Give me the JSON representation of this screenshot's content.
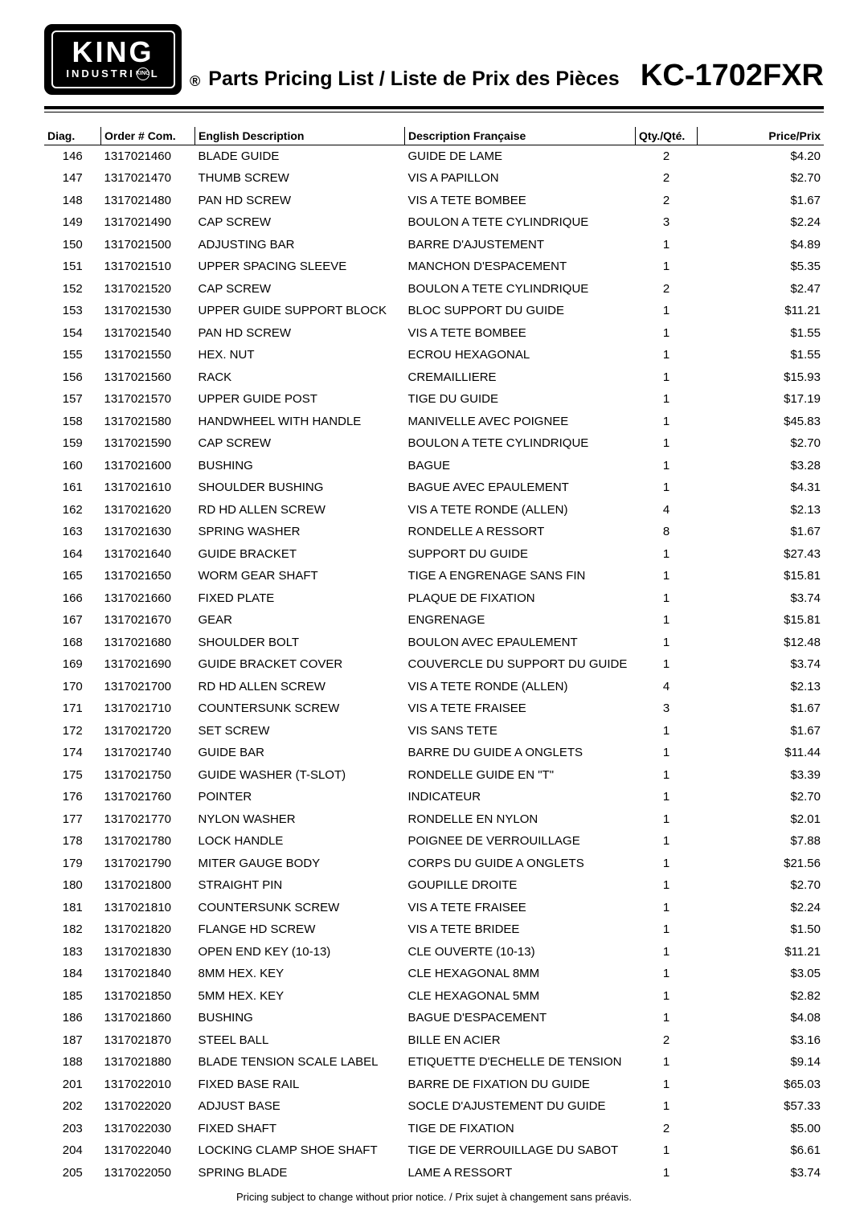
{
  "logo": {
    "line1": "KING",
    "line2_a": "INDUSTRI",
    "line2_b": "L",
    "circle": "KING"
  },
  "registered": "®",
  "title": "Parts Pricing List / Liste de Prix des Pièces",
  "model": "KC-1702FXR",
  "columns": {
    "diag": "Diag.",
    "order": "Order # Com.",
    "eng": "English Description",
    "fr": "Description Française",
    "qty": "Qty./Qté.",
    "price": "Price/Prix"
  },
  "footer": "Pricing subject to change without prior notice. / Prix sujet à changement sans préavis.",
  "rows": [
    {
      "diag": "146",
      "order": "1317021460",
      "eng": "BLADE GUIDE",
      "fr": "GUIDE DE LAME",
      "qty": "2",
      "price": "$4.20"
    },
    {
      "diag": "147",
      "order": "1317021470",
      "eng": "THUMB SCREW",
      "fr": "VIS A PAPILLON",
      "qty": "2",
      "price": "$2.70"
    },
    {
      "diag": "148",
      "order": "1317021480",
      "eng": "PAN HD SCREW",
      "fr": "VIS A TETE BOMBEE",
      "qty": "2",
      "price": "$1.67"
    },
    {
      "diag": "149",
      "order": "1317021490",
      "eng": "CAP SCREW",
      "fr": "BOULON A TETE CYLINDRIQUE",
      "qty": "3",
      "price": "$2.24"
    },
    {
      "diag": "150",
      "order": "1317021500",
      "eng": "ADJUSTING BAR",
      "fr": "BARRE D'AJUSTEMENT",
      "qty": "1",
      "price": "$4.89"
    },
    {
      "diag": "151",
      "order": "1317021510",
      "eng": "UPPER SPACING SLEEVE",
      "fr": "MANCHON D'ESPACEMENT",
      "qty": "1",
      "price": "$5.35"
    },
    {
      "diag": "152",
      "order": "1317021520",
      "eng": "CAP SCREW",
      "fr": "BOULON A TETE CYLINDRIQUE",
      "qty": "2",
      "price": "$2.47"
    },
    {
      "diag": "153",
      "order": "1317021530",
      "eng": "UPPER GUIDE SUPPORT BLOCK",
      "fr": "BLOC SUPPORT DU GUIDE",
      "qty": "1",
      "price": "$11.21"
    },
    {
      "diag": "154",
      "order": "1317021540",
      "eng": "PAN HD SCREW",
      "fr": "VIS A TETE BOMBEE",
      "qty": "1",
      "price": "$1.55"
    },
    {
      "diag": "155",
      "order": "1317021550",
      "eng": "HEX. NUT",
      "fr": "ECROU HEXAGONAL",
      "qty": "1",
      "price": "$1.55"
    },
    {
      "diag": "156",
      "order": "1317021560",
      "eng": "RACK",
      "fr": "CREMAILLIERE",
      "qty": "1",
      "price": "$15.93"
    },
    {
      "diag": "157",
      "order": "1317021570",
      "eng": "UPPER GUIDE POST",
      "fr": "TIGE DU GUIDE",
      "qty": "1",
      "price": "$17.19"
    },
    {
      "diag": "158",
      "order": "1317021580",
      "eng": "HANDWHEEL WITH HANDLE",
      "fr": "MANIVELLE AVEC POIGNEE",
      "qty": "1",
      "price": "$45.83"
    },
    {
      "diag": "159",
      "order": "1317021590",
      "eng": "CAP SCREW",
      "fr": "BOULON A TETE CYLINDRIQUE",
      "qty": "1",
      "price": "$2.70"
    },
    {
      "diag": "160",
      "order": "1317021600",
      "eng": "BUSHING",
      "fr": "BAGUE",
      "qty": "1",
      "price": "$3.28"
    },
    {
      "diag": "161",
      "order": "1317021610",
      "eng": "SHOULDER BUSHING",
      "fr": "BAGUE AVEC EPAULEMENT",
      "qty": "1",
      "price": "$4.31"
    },
    {
      "diag": "162",
      "order": "1317021620",
      "eng": "RD HD ALLEN SCREW",
      "fr": "VIS A TETE RONDE (ALLEN)",
      "qty": "4",
      "price": "$2.13"
    },
    {
      "diag": "163",
      "order": "1317021630",
      "eng": "SPRING WASHER",
      "fr": "RONDELLE A RESSORT",
      "qty": "8",
      "price": "$1.67"
    },
    {
      "diag": "164",
      "order": "1317021640",
      "eng": "GUIDE BRACKET",
      "fr": "SUPPORT DU GUIDE",
      "qty": "1",
      "price": "$27.43"
    },
    {
      "diag": "165",
      "order": "1317021650",
      "eng": "WORM GEAR SHAFT",
      "fr": "TIGE A ENGRENAGE SANS FIN",
      "qty": "1",
      "price": "$15.81"
    },
    {
      "diag": "166",
      "order": "1317021660",
      "eng": "FIXED PLATE",
      "fr": "PLAQUE DE FIXATION",
      "qty": "1",
      "price": "$3.74"
    },
    {
      "diag": "167",
      "order": "1317021670",
      "eng": "GEAR",
      "fr": "ENGRENAGE",
      "qty": "1",
      "price": "$15.81"
    },
    {
      "diag": "168",
      "order": "1317021680",
      "eng": "SHOULDER BOLT",
      "fr": "BOULON AVEC EPAULEMENT",
      "qty": "1",
      "price": "$12.48"
    },
    {
      "diag": "169",
      "order": "1317021690",
      "eng": "GUIDE BRACKET COVER",
      "fr": "COUVERCLE DU SUPPORT DU GUIDE",
      "qty": "1",
      "price": "$3.74"
    },
    {
      "diag": "170",
      "order": "1317021700",
      "eng": "RD HD ALLEN SCREW",
      "fr": "VIS A TETE RONDE (ALLEN)",
      "qty": "4",
      "price": "$2.13"
    },
    {
      "diag": "171",
      "order": "1317021710",
      "eng": "COUNTERSUNK SCREW",
      "fr": "VIS A TETE FRAISEE",
      "qty": "3",
      "price": "$1.67"
    },
    {
      "diag": "172",
      "order": "1317021720",
      "eng": "SET SCREW",
      "fr": "VIS SANS TETE",
      "qty": "1",
      "price": "$1.67"
    },
    {
      "diag": "174",
      "order": "1317021740",
      "eng": "GUIDE BAR",
      "fr": "BARRE DU GUIDE A ONGLETS",
      "qty": "1",
      "price": "$11.44"
    },
    {
      "diag": "175",
      "order": "1317021750",
      "eng": "GUIDE WASHER (T-SLOT)",
      "fr": "RONDELLE GUIDE EN \"T\"",
      "qty": "1",
      "price": "$3.39"
    },
    {
      "diag": "176",
      "order": "1317021760",
      "eng": "POINTER",
      "fr": "INDICATEUR",
      "qty": "1",
      "price": "$2.70"
    },
    {
      "diag": "177",
      "order": "1317021770",
      "eng": "NYLON WASHER",
      "fr": "RONDELLE EN NYLON",
      "qty": "1",
      "price": "$2.01"
    },
    {
      "diag": "178",
      "order": "1317021780",
      "eng": "LOCK HANDLE",
      "fr": "POIGNEE DE VERROUILLAGE",
      "qty": "1",
      "price": "$7.88"
    },
    {
      "diag": "179",
      "order": "1317021790",
      "eng": "MITER GAUGE BODY",
      "fr": "CORPS DU GUIDE A ONGLETS",
      "qty": "1",
      "price": "$21.56"
    },
    {
      "diag": "180",
      "order": "1317021800",
      "eng": "STRAIGHT PIN",
      "fr": "GOUPILLE DROITE",
      "qty": "1",
      "price": "$2.70"
    },
    {
      "diag": "181",
      "order": "1317021810",
      "eng": "COUNTERSUNK SCREW",
      "fr": "VIS A TETE FRAISEE",
      "qty": "1",
      "price": "$2.24"
    },
    {
      "diag": "182",
      "order": "1317021820",
      "eng": "FLANGE HD SCREW",
      "fr": "VIS A TETE BRIDEE",
      "qty": "1",
      "price": "$1.50"
    },
    {
      "diag": "183",
      "order": "1317021830",
      "eng": "OPEN END KEY (10-13)",
      "fr": "CLE OUVERTE (10-13)",
      "qty": "1",
      "price": "$11.21"
    },
    {
      "diag": "184",
      "order": "1317021840",
      "eng": "8MM HEX. KEY",
      "fr": "CLE HEXAGONAL 8MM",
      "qty": "1",
      "price": "$3.05"
    },
    {
      "diag": "185",
      "order": "1317021850",
      "eng": "5MM HEX. KEY",
      "fr": "CLE HEXAGONAL 5MM",
      "qty": "1",
      "price": "$2.82"
    },
    {
      "diag": "186",
      "order": "1317021860",
      "eng": "BUSHING",
      "fr": "BAGUE D'ESPACEMENT",
      "qty": "1",
      "price": "$4.08"
    },
    {
      "diag": "187",
      "order": "1317021870",
      "eng": "STEEL BALL",
      "fr": "BILLE EN ACIER",
      "qty": "2",
      "price": "$3.16"
    },
    {
      "diag": "188",
      "order": "1317021880",
      "eng": "BLADE TENSION SCALE LABEL",
      "fr": "ETIQUETTE D'ECHELLE DE TENSION",
      "qty": "1",
      "price": "$9.14"
    },
    {
      "diag": "201",
      "order": "1317022010",
      "eng": "FIXED BASE RAIL",
      "fr": "BARRE DE FIXATION DU GUIDE",
      "qty": "1",
      "price": "$65.03"
    },
    {
      "diag": "202",
      "order": "1317022020",
      "eng": "ADJUST BASE",
      "fr": "SOCLE D'AJUSTEMENT DU GUIDE",
      "qty": "1",
      "price": "$57.33"
    },
    {
      "diag": "203",
      "order": "1317022030",
      "eng": "FIXED SHAFT",
      "fr": "TIGE DE FIXATION",
      "qty": "2",
      "price": "$5.00"
    },
    {
      "diag": "204",
      "order": "1317022040",
      "eng": "LOCKING CLAMP SHOE SHAFT",
      "fr": "TIGE DE VERROUILLAGE DU SABOT",
      "qty": "1",
      "price": "$6.61"
    },
    {
      "diag": "205",
      "order": "1317022050",
      "eng": "SPRING BLADE",
      "fr": "LAME A RESSORT",
      "qty": "1",
      "price": "$3.74"
    }
  ]
}
